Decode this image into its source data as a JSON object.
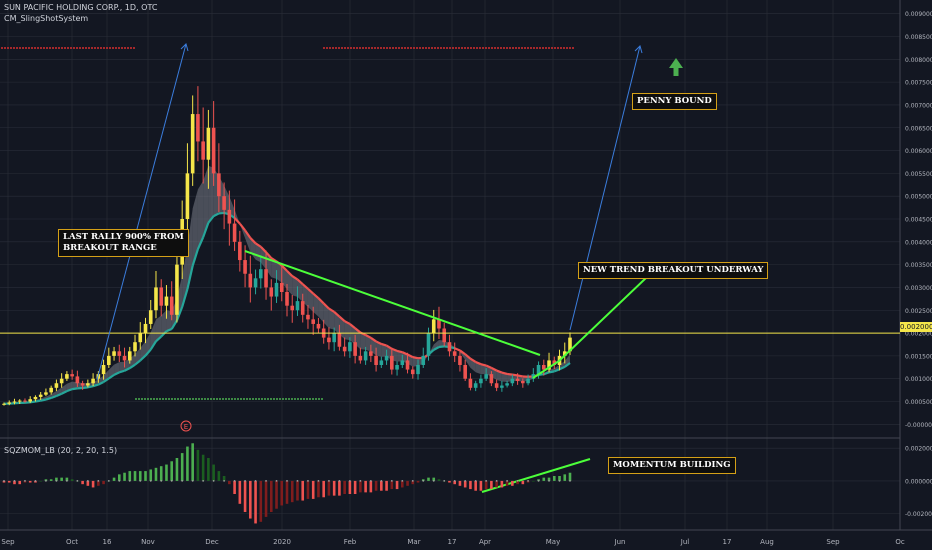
{
  "header": {
    "symbol_line": "SUN PACIFIC HOLDING CORP., 1D, OTC",
    "indicator_line": "CM_SlingShotSystem"
  },
  "lower_panel": {
    "indicator_label": "SQZMOM_LB (20, 2, 20, 1.5)"
  },
  "annotations": {
    "last_rally": "LAST RALLY 900% FROM\nBREAKOUT RANGE",
    "penny_bound": "PENNY BOUND",
    "new_trend": "NEW TREND BREAKOUT UNDERWAY",
    "momentum": "MOMENTUM BUILDING",
    "earnings_marker": "E"
  },
  "colors": {
    "background": "#131722",
    "grid": "#2a2e39",
    "up_yellow": "#f5e64a",
    "up_green": "#26a69a",
    "down_red": "#ef5350",
    "trendline": "#4cff3a",
    "projection": "#3b7ddd",
    "price_line": "#f5e64a",
    "arrow": "#4caf50"
  },
  "chart_data": [
    {
      "type": "candlestick",
      "title": "SUN PACIFIC HOLDING CORP., 1D, OTC",
      "x_labels": [
        "Sep",
        "Oct",
        "16",
        "Nov",
        "Dec",
        "2020",
        "Feb",
        "Mar",
        "17",
        "Apr",
        "May",
        "Jun",
        "Jul",
        "17",
        "Aug",
        "Sep",
        "Oc"
      ],
      "y_ticks": [
        "0.009000",
        "0.008500",
        "0.008000",
        "0.007500",
        "0.007000",
        "0.006500",
        "0.006000",
        "0.005500",
        "0.005000",
        "0.004500",
        "0.004000",
        "0.003500",
        "0.003000",
        "0.002500",
        "0.002000",
        "0.001500",
        "0.001000",
        "0.000500",
        "-0.000000"
      ],
      "y_tick_values": [
        0.009,
        0.0085,
        0.008,
        0.0075,
        0.007,
        0.0065,
        0.006,
        0.0055,
        0.005,
        0.0045,
        0.004,
        0.0035,
        0.003,
        0.0025,
        0.002,
        0.0015,
        0.001,
        0.0005,
        0.0
      ],
      "ylim": [
        -0.0003,
        0.0093
      ],
      "current_price": 0.002,
      "current_price_label": "0.002000",
      "closes": [
        0.00045,
        0.00048,
        0.0005,
        0.00052,
        0.0005,
        0.00055,
        0.0006,
        0.00065,
        0.0007,
        0.0008,
        0.0009,
        0.001,
        0.0011,
        0.00105,
        0.0009,
        0.00085,
        0.0009,
        0.001,
        0.0011,
        0.0013,
        0.0015,
        0.0016,
        0.0015,
        0.0014,
        0.0016,
        0.0018,
        0.002,
        0.0022,
        0.0025,
        0.003,
        0.0026,
        0.0028,
        0.0024,
        0.0035,
        0.0045,
        0.0055,
        0.0068,
        0.0062,
        0.0058,
        0.0065,
        0.0055,
        0.005,
        0.0047,
        0.0044,
        0.004,
        0.0036,
        0.0033,
        0.003,
        0.0032,
        0.0034,
        0.003,
        0.0028,
        0.0031,
        0.0029,
        0.0026,
        0.0025,
        0.0027,
        0.0024,
        0.0023,
        0.0022,
        0.0021,
        0.0019,
        0.0018,
        0.002,
        0.0017,
        0.0016,
        0.0018,
        0.0015,
        0.0014,
        0.0016,
        0.0015,
        0.0013,
        0.0014,
        0.0015,
        0.0012,
        0.0013,
        0.0014,
        0.0012,
        0.0011,
        0.0013,
        0.0015,
        0.002,
        0.0023,
        0.0021,
        0.0018,
        0.0016,
        0.0015,
        0.0013,
        0.001,
        0.0008,
        0.0009,
        0.001,
        0.0011,
        0.0009,
        0.0008,
        0.00085,
        0.0009,
        0.001,
        0.00095,
        0.0009,
        0.001,
        0.0011,
        0.0013,
        0.0012,
        0.0014,
        0.0013,
        0.0015,
        0.0016,
        0.0019
      ]
    },
    {
      "type": "bar",
      "title": "SQZMOM_LB (20, 2, 20, 1.5)",
      "y_ticks": [
        "0.002000",
        "0.000000",
        "-0.002000"
      ],
      "y_tick_values": [
        0.002,
        0.0,
        -0.002
      ],
      "ylim": [
        -0.003,
        0.0025
      ],
      "values": [
        -0.0001,
        -0.0001,
        -0.0002,
        -0.0002,
        -0.0001,
        -0.0001,
        -0.0001,
        0.0,
        0.0001,
        0.0001,
        0.0002,
        0.0002,
        0.0002,
        0.0001,
        0.0,
        -0.0002,
        -0.0003,
        -0.0004,
        -0.0003,
        -0.0002,
        0.0,
        0.0002,
        0.0004,
        0.0005,
        0.0006,
        0.0006,
        0.0006,
        0.0006,
        0.0007,
        0.0008,
        0.0009,
        0.001,
        0.0012,
        0.0014,
        0.0017,
        0.0021,
        0.0023,
        0.0019,
        0.0016,
        0.0014,
        0.001,
        0.0006,
        0.0003,
        -0.0002,
        -0.0008,
        -0.0014,
        -0.0019,
        -0.0023,
        -0.0026,
        -0.0025,
        -0.0022,
        -0.0019,
        -0.0017,
        -0.0015,
        -0.0014,
        -0.0013,
        -0.0012,
        -0.0012,
        -0.0011,
        -0.0011,
        -0.001,
        -0.001,
        -0.0009,
        -0.0009,
        -0.0009,
        -0.0008,
        -0.0008,
        -0.0008,
        -0.0007,
        -0.0007,
        -0.0007,
        -0.0006,
        -0.0006,
        -0.0006,
        -0.0005,
        -0.0005,
        -0.0004,
        -0.0003,
        -0.0002,
        -0.0001,
        0.0001,
        0.0002,
        0.0002,
        0.0001,
        0.0,
        -0.0001,
        -0.0002,
        -0.0003,
        -0.0004,
        -0.0005,
        -0.0006,
        -0.0006,
        -0.0005,
        -0.0005,
        -0.0004,
        -0.0004,
        -0.0003,
        -0.0003,
        -0.0002,
        -0.0002,
        -0.0001,
        0.0,
        0.0001,
        0.0002,
        0.0002,
        0.0003,
        0.0003,
        0.0004,
        0.0005
      ]
    }
  ]
}
